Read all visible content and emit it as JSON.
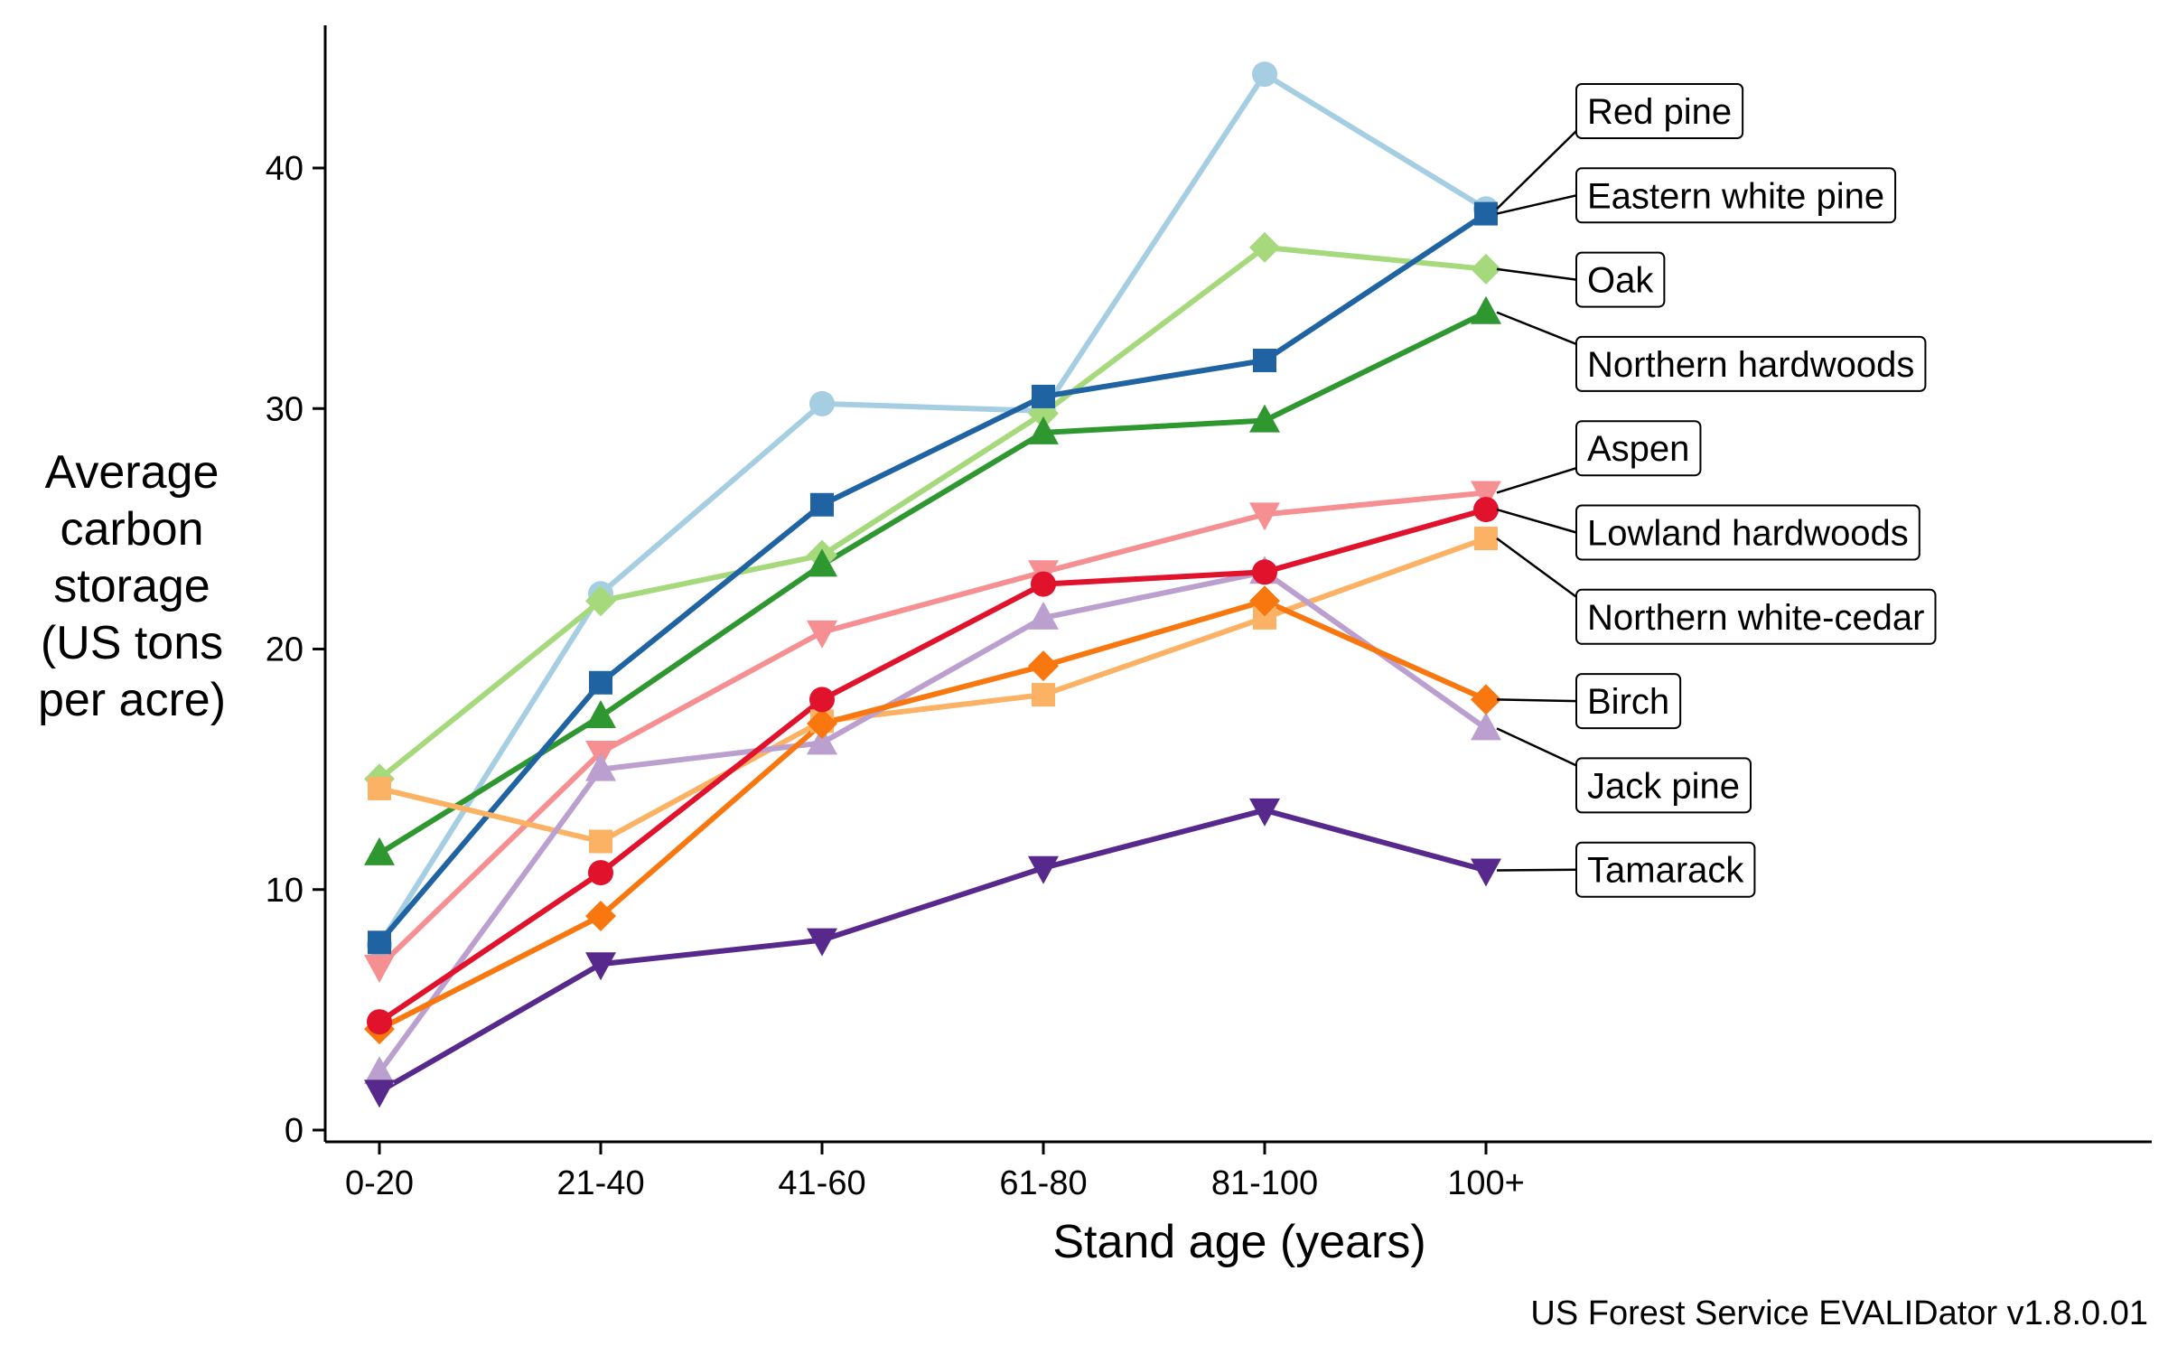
{
  "chart_data": {
    "type": "line",
    "xlabel": "Stand age (years)",
    "ylabel": [
      "Average",
      "carbon",
      "storage",
      "(US tons",
      "per acre)"
    ],
    "caption": "US Forest Service EVALIDator v1.8.0.01",
    "categories": [
      "0-20",
      "21-40",
      "41-60",
      "61-80",
      "81-100",
      "100+"
    ],
    "ylim": [
      0,
      45
    ],
    "yticks": [
      0,
      10,
      20,
      30,
      40
    ],
    "grid": false,
    "legend": "direct labels at right end of lines",
    "series": [
      {
        "name": "Red pine",
        "color": "#a6cee3",
        "marker": "circle",
        "values": [
          7.7,
          22.3,
          30.2,
          29.9,
          43.9,
          38.3
        ]
      },
      {
        "name": "Eastern white pine",
        "color": "#1f63a3",
        "marker": "square",
        "values": [
          7.8,
          18.6,
          26.0,
          30.5,
          32.0,
          38.1
        ]
      },
      {
        "name": "Oak",
        "color": "#a5d97c",
        "marker": "diamond",
        "values": [
          14.6,
          22.0,
          23.9,
          29.8,
          36.7,
          35.8
        ]
      },
      {
        "name": "Northern hardwoods",
        "color": "#2f972f",
        "marker": "triangle-up",
        "values": [
          11.5,
          17.2,
          23.5,
          29.0,
          29.5,
          34.0
        ]
      },
      {
        "name": "Aspen",
        "color": "#f58f91",
        "marker": "triangle-down",
        "values": [
          6.8,
          15.7,
          20.7,
          23.2,
          25.6,
          26.5
        ]
      },
      {
        "name": "Lowland hardwoods",
        "color": "#e0122c",
        "marker": "circle",
        "values": [
          4.5,
          10.7,
          17.9,
          22.7,
          23.2,
          25.8
        ]
      },
      {
        "name": "Northern white-cedar",
        "color": "#fbb264",
        "marker": "square",
        "values": [
          14.2,
          12.0,
          17.0,
          18.1,
          21.3,
          24.6
        ]
      },
      {
        "name": "Birch",
        "color": "#f8770f",
        "marker": "diamond",
        "values": [
          4.2,
          8.9,
          16.9,
          19.3,
          22.0,
          17.9
        ]
      },
      {
        "name": "Jack pine",
        "color": "#bba0cf",
        "marker": "triangle-up",
        "values": [
          2.4,
          15.0,
          16.1,
          21.3,
          23.2,
          16.7
        ]
      },
      {
        "name": "Tamarack",
        "color": "#57298c",
        "marker": "triangle-down",
        "values": [
          1.6,
          6.9,
          7.9,
          10.9,
          13.3,
          10.8
        ]
      }
    ]
  }
}
